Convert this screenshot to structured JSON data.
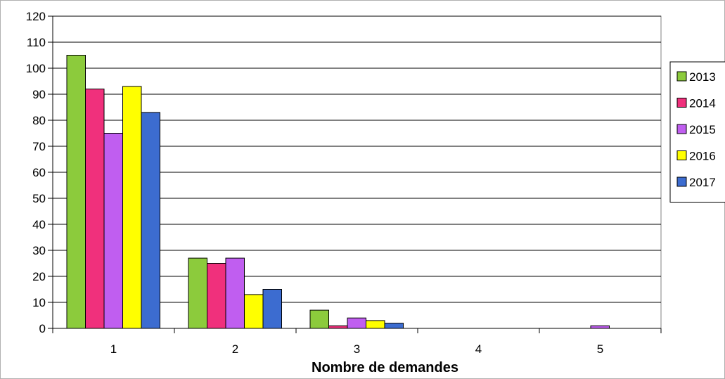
{
  "chart_data": {
    "type": "bar",
    "title": "",
    "xlabel": "Nombre de demandes",
    "ylabel": "",
    "categories": [
      "1",
      "2",
      "3",
      "4",
      "5"
    ],
    "series": [
      {
        "name": "2013",
        "color": "#8ccb3c",
        "values": [
          105,
          27,
          7,
          0,
          0
        ]
      },
      {
        "name": "2014",
        "color": "#f0307c",
        "values": [
          92,
          25,
          1,
          0,
          0
        ]
      },
      {
        "name": "2015",
        "color": "#c05ef0",
        "values": [
          75,
          27,
          4,
          0,
          1
        ]
      },
      {
        "name": "2016",
        "color": "#ffff00",
        "values": [
          93,
          13,
          3,
          0,
          0
        ]
      },
      {
        "name": "2017",
        "color": "#3c6cd0",
        "values": [
          83,
          15,
          2,
          0,
          0
        ]
      }
    ],
    "ylim": [
      0,
      120
    ],
    "ytick_step": 10,
    "grid": true,
    "legend_position": "right"
  }
}
